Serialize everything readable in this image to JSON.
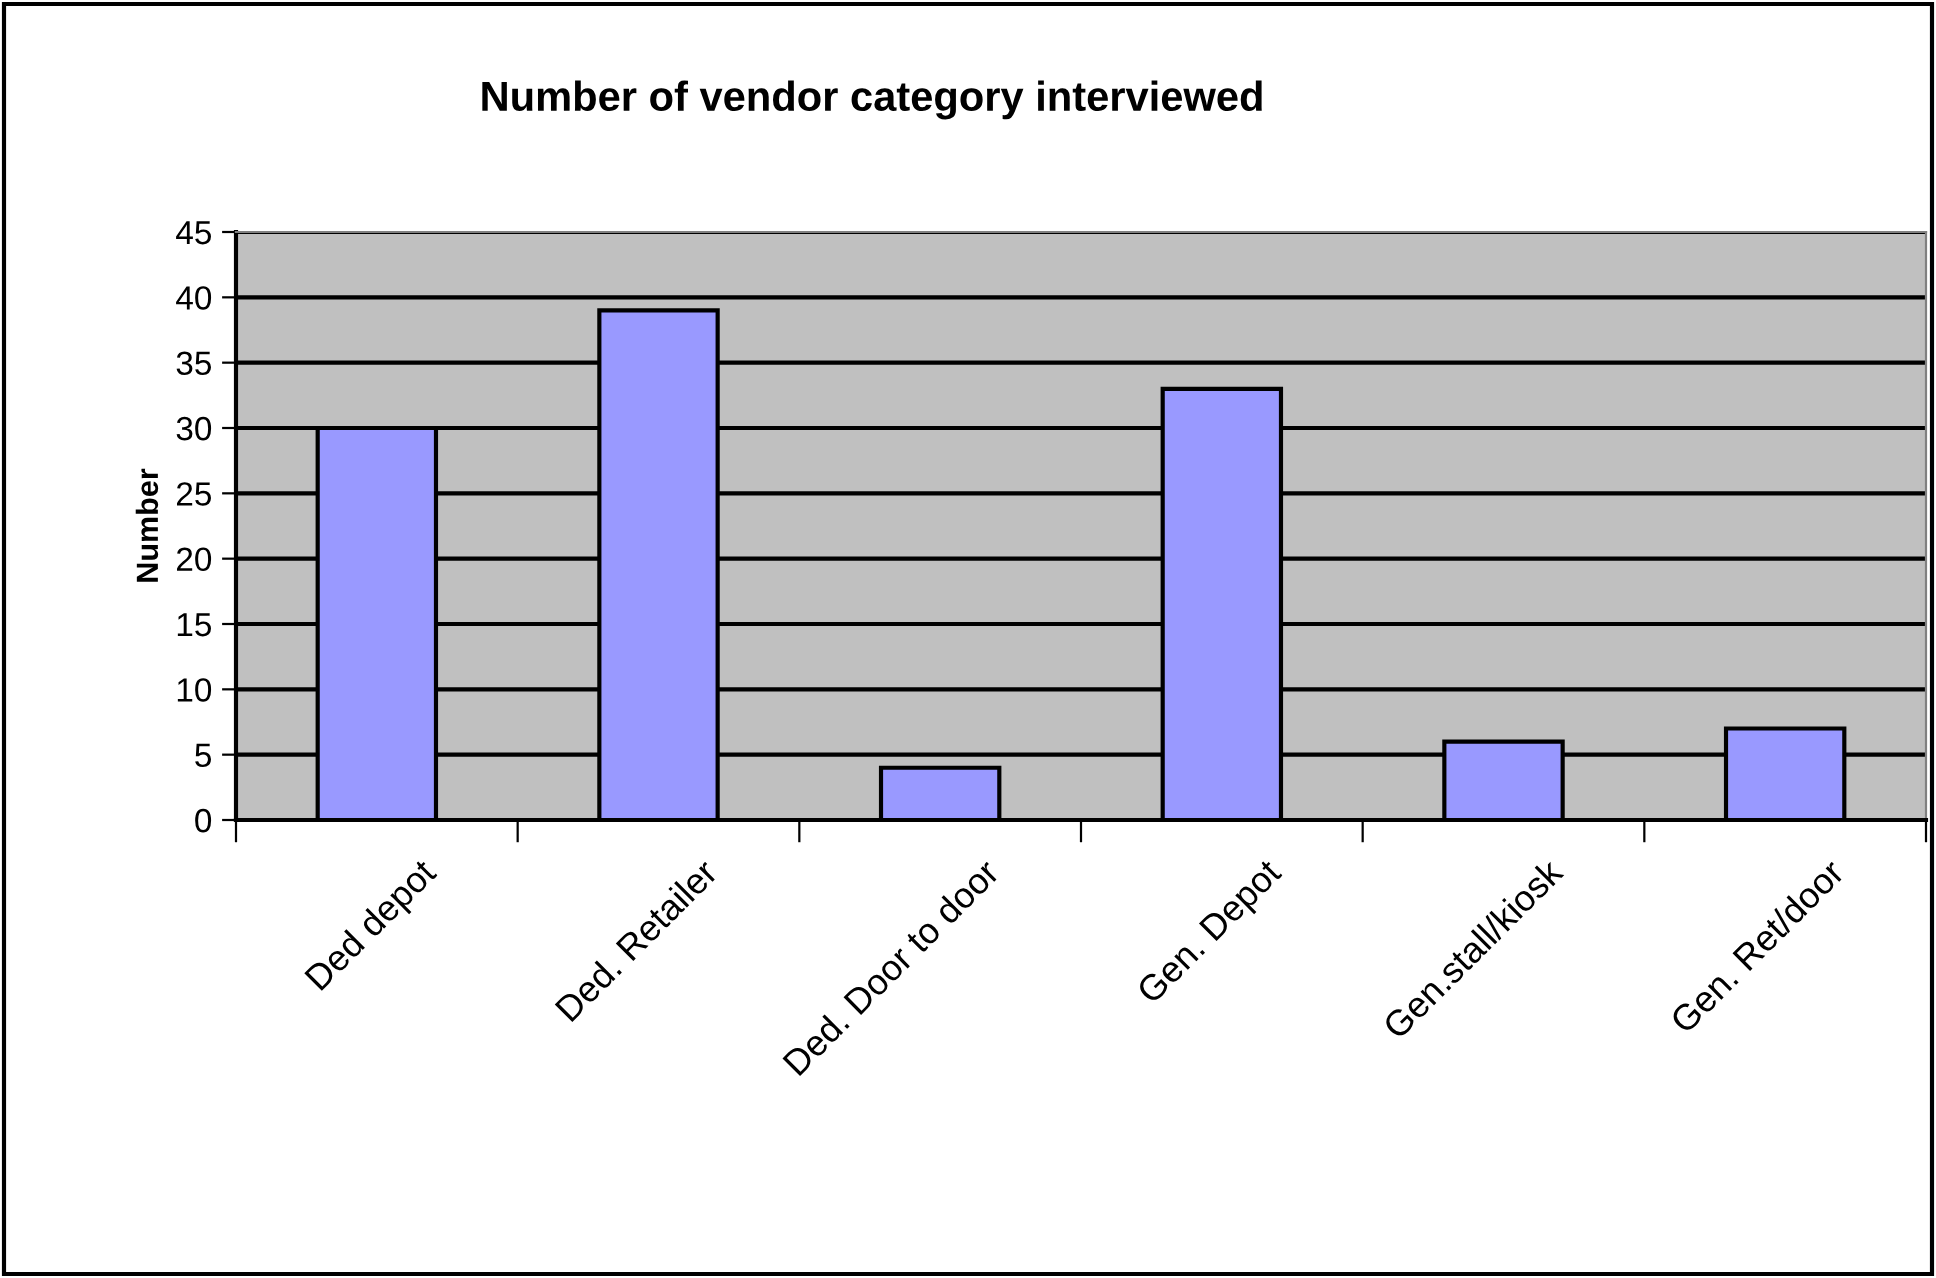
{
  "chart_data": {
    "type": "bar",
    "title": "Number of vendor category interviewed",
    "ylabel": "Number",
    "categories": [
      "Ded depot",
      "Ded. Retailer",
      "Ded. Door to door",
      "Gen. Depot",
      "Gen.stall/kiosk",
      "Gen. Ret/door"
    ],
    "values": [
      30,
      39,
      4,
      33,
      6,
      7
    ],
    "color": "#9999ff",
    "ylim": [
      0,
      45
    ],
    "yticks": [
      0,
      5,
      10,
      15,
      20,
      25,
      30,
      35,
      40,
      45
    ],
    "grid": "y",
    "legend": false
  }
}
